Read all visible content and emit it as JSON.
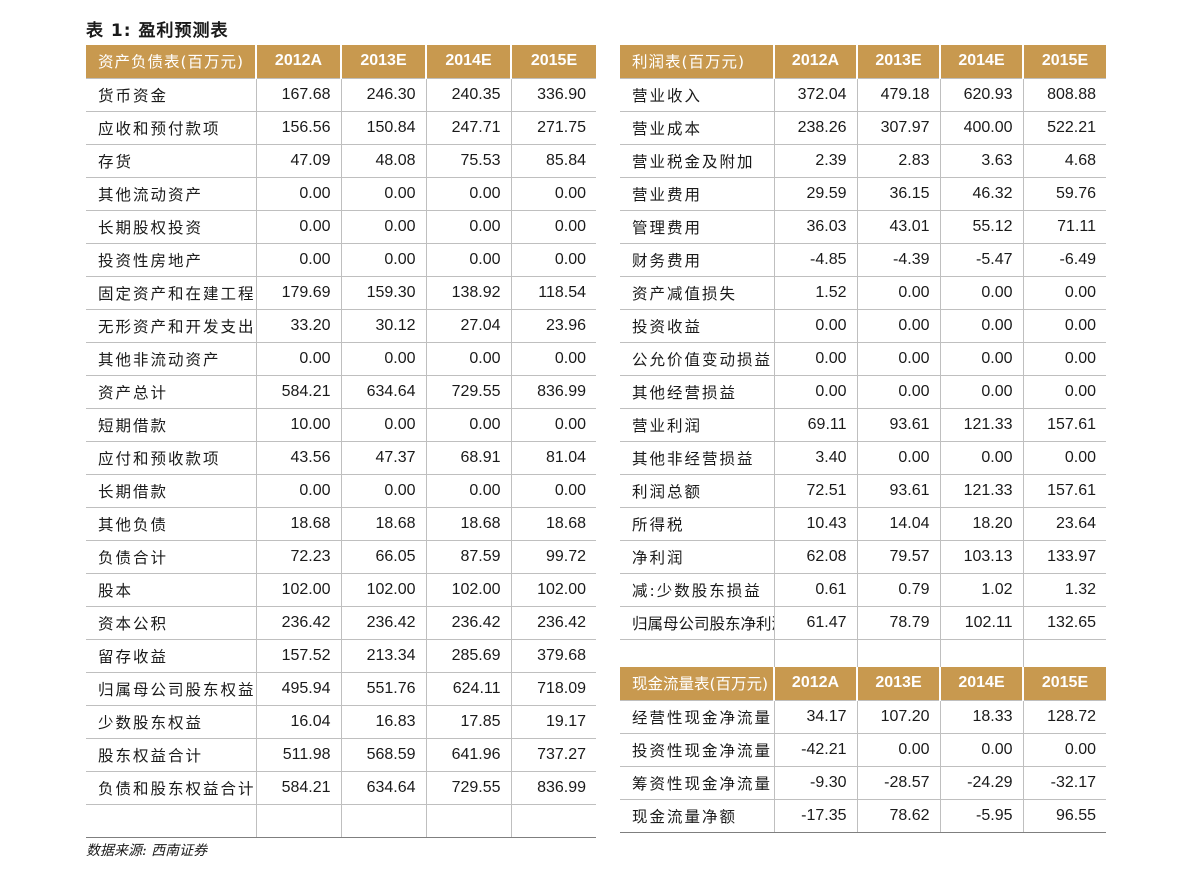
{
  "title": "表 1:  盈利预测表",
  "source": "数据来源:  西南证券",
  "balance_sheet": {
    "header": "资产负债表(百万元)",
    "years": [
      "2012A",
      "2013E",
      "2014E",
      "2015E"
    ],
    "rows": [
      {
        "label": "货币资金",
        "values": [
          "167.68",
          "246.30",
          "240.35",
          "336.90"
        ]
      },
      {
        "label": "应收和预付款项",
        "values": [
          "156.56",
          "150.84",
          "247.71",
          "271.75"
        ]
      },
      {
        "label": "存货",
        "values": [
          "47.09",
          "48.08",
          "75.53",
          "85.84"
        ]
      },
      {
        "label": "其他流动资产",
        "values": [
          "0.00",
          "0.00",
          "0.00",
          "0.00"
        ]
      },
      {
        "label": "长期股权投资",
        "values": [
          "0.00",
          "0.00",
          "0.00",
          "0.00"
        ]
      },
      {
        "label": "投资性房地产",
        "values": [
          "0.00",
          "0.00",
          "0.00",
          "0.00"
        ]
      },
      {
        "label": "固定资产和在建工程",
        "values": [
          "179.69",
          "159.30",
          "138.92",
          "118.54"
        ]
      },
      {
        "label": "无形资产和开发支出",
        "values": [
          "33.20",
          "30.12",
          "27.04",
          "23.96"
        ]
      },
      {
        "label": "其他非流动资产",
        "values": [
          "0.00",
          "0.00",
          "0.00",
          "0.00"
        ]
      },
      {
        "label": "资产总计",
        "values": [
          "584.21",
          "634.64",
          "729.55",
          "836.99"
        ]
      },
      {
        "label": "短期借款",
        "values": [
          "10.00",
          "0.00",
          "0.00",
          "0.00"
        ]
      },
      {
        "label": "应付和预收款项",
        "values": [
          "43.56",
          "47.37",
          "68.91",
          "81.04"
        ]
      },
      {
        "label": "长期借款",
        "values": [
          "0.00",
          "0.00",
          "0.00",
          "0.00"
        ]
      },
      {
        "label": "其他负债",
        "values": [
          "18.68",
          "18.68",
          "18.68",
          "18.68"
        ]
      },
      {
        "label": "负债合计",
        "values": [
          "72.23",
          "66.05",
          "87.59",
          "99.72"
        ]
      },
      {
        "label": "股本",
        "values": [
          "102.00",
          "102.00",
          "102.00",
          "102.00"
        ]
      },
      {
        "label": "资本公积",
        "values": [
          "236.42",
          "236.42",
          "236.42",
          "236.42"
        ]
      },
      {
        "label": "留存收益",
        "values": [
          "157.52",
          "213.34",
          "285.69",
          "379.68"
        ]
      },
      {
        "label": "归属母公司股东权益",
        "values": [
          "495.94",
          "551.76",
          "624.11",
          "718.09"
        ]
      },
      {
        "label": "少数股东权益",
        "values": [
          "16.04",
          "16.83",
          "17.85",
          "19.17"
        ]
      },
      {
        "label": "股东权益合计",
        "values": [
          "511.98",
          "568.59",
          "641.96",
          "737.27"
        ]
      },
      {
        "label": "负债和股东权益合计",
        "values": [
          "584.21",
          "634.64",
          "729.55",
          "836.99"
        ]
      },
      {
        "label": "",
        "values": [
          "",
          "",
          "",
          ""
        ]
      }
    ]
  },
  "income_statement": {
    "header": "利润表(百万元)",
    "years": [
      "2012A",
      "2013E",
      "2014E",
      "2015E"
    ],
    "rows": [
      {
        "label": "营业收入",
        "values": [
          "372.04",
          "479.18",
          "620.93",
          "808.88"
        ]
      },
      {
        "label": "营业成本",
        "values": [
          "238.26",
          "307.97",
          "400.00",
          "522.21"
        ]
      },
      {
        "label": "营业税金及附加",
        "values": [
          "2.39",
          "2.83",
          "3.63",
          "4.68"
        ]
      },
      {
        "label": "营业费用",
        "values": [
          "29.59",
          "36.15",
          "46.32",
          "59.76"
        ]
      },
      {
        "label": "管理费用",
        "values": [
          "36.03",
          "43.01",
          "55.12",
          "71.11"
        ]
      },
      {
        "label": "财务费用",
        "values": [
          "-4.85",
          "-4.39",
          "-5.47",
          "-6.49"
        ]
      },
      {
        "label": "资产减值损失",
        "values": [
          "1.52",
          "0.00",
          "0.00",
          "0.00"
        ]
      },
      {
        "label": "投资收益",
        "values": [
          "0.00",
          "0.00",
          "0.00",
          "0.00"
        ]
      },
      {
        "label": "公允价值变动损益",
        "values": [
          "0.00",
          "0.00",
          "0.00",
          "0.00"
        ]
      },
      {
        "label": "其他经营损益",
        "values": [
          "0.00",
          "0.00",
          "0.00",
          "0.00"
        ]
      },
      {
        "label": "营业利润",
        "values": [
          "69.11",
          "93.61",
          "121.33",
          "157.61"
        ]
      },
      {
        "label": "其他非经营损益",
        "values": [
          "3.40",
          "0.00",
          "0.00",
          "0.00"
        ]
      },
      {
        "label": "利润总额",
        "values": [
          "72.51",
          "93.61",
          "121.33",
          "157.61"
        ]
      },
      {
        "label": "所得税",
        "values": [
          "10.43",
          "14.04",
          "18.20",
          "23.64"
        ]
      },
      {
        "label": "净利润",
        "values": [
          "62.08",
          "79.57",
          "103.13",
          "133.97"
        ]
      },
      {
        "label": "减:少数股东损益",
        "values": [
          "0.61",
          "0.79",
          "1.02",
          "1.32"
        ]
      },
      {
        "label": "归属母公司股东净利润",
        "values": [
          "61.47",
          "78.79",
          "102.11",
          "132.65"
        ]
      },
      {
        "label": "",
        "values": [
          "",
          "",
          "",
          ""
        ]
      }
    ]
  },
  "cash_flow": {
    "header": "现金流量表(百万元)",
    "years": [
      "2012A",
      "2013E",
      "2014E",
      "2015E"
    ],
    "rows": [
      {
        "label": "经营性现金净流量",
        "values": [
          "34.17",
          "107.20",
          "18.33",
          "128.72"
        ]
      },
      {
        "label": "投资性现金净流量",
        "values": [
          "-42.21",
          "0.00",
          "0.00",
          "0.00"
        ]
      },
      {
        "label": "筹资性现金净流量",
        "values": [
          "-9.30",
          "-28.57",
          "-24.29",
          "-32.17"
        ]
      },
      {
        "label": "现金流量净额",
        "values": [
          "-17.35",
          "78.62",
          "-5.95",
          "96.55"
        ]
      }
    ]
  }
}
